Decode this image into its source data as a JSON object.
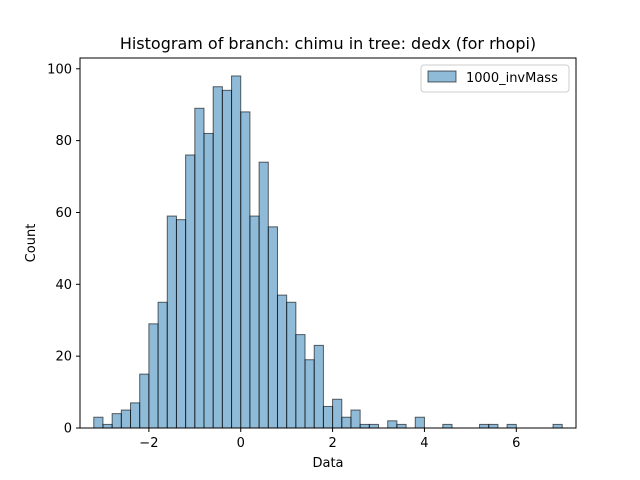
{
  "chart_data": {
    "type": "bar",
    "subtype": "histogram",
    "title": "Histogram of branch: chimu in tree: dedx (for rhopi)",
    "xlabel": "Data",
    "ylabel": "Count",
    "xlim": [
      -3.5,
      7.3
    ],
    "ylim": [
      0,
      103
    ],
    "xticks": [
      -2,
      0,
      2,
      4,
      6
    ],
    "xtick_labels": [
      "−2",
      "0",
      "2",
      "4",
      "6"
    ],
    "yticks": [
      0,
      20,
      40,
      60,
      80,
      100
    ],
    "grid": false,
    "legend_position": "top-right",
    "series": [
      {
        "name": "1000_invMass",
        "color": "#1f77b4",
        "fill_alpha": 0.5,
        "edge_color": "#000000",
        "bin_start": -3.2,
        "bin_width": 0.2,
        "values": [
          3,
          1,
          4,
          5,
          7,
          15,
          29,
          35,
          59,
          58,
          76,
          89,
          82,
          95,
          94,
          98,
          88,
          59,
          74,
          56,
          37,
          35,
          26,
          19,
          23,
          6,
          8,
          3,
          5,
          1,
          1,
          0,
          2,
          1,
          0,
          3,
          0,
          0,
          1,
          0,
          0,
          0,
          1,
          1,
          0,
          1,
          0,
          0,
          0,
          0,
          1
        ]
      }
    ]
  }
}
